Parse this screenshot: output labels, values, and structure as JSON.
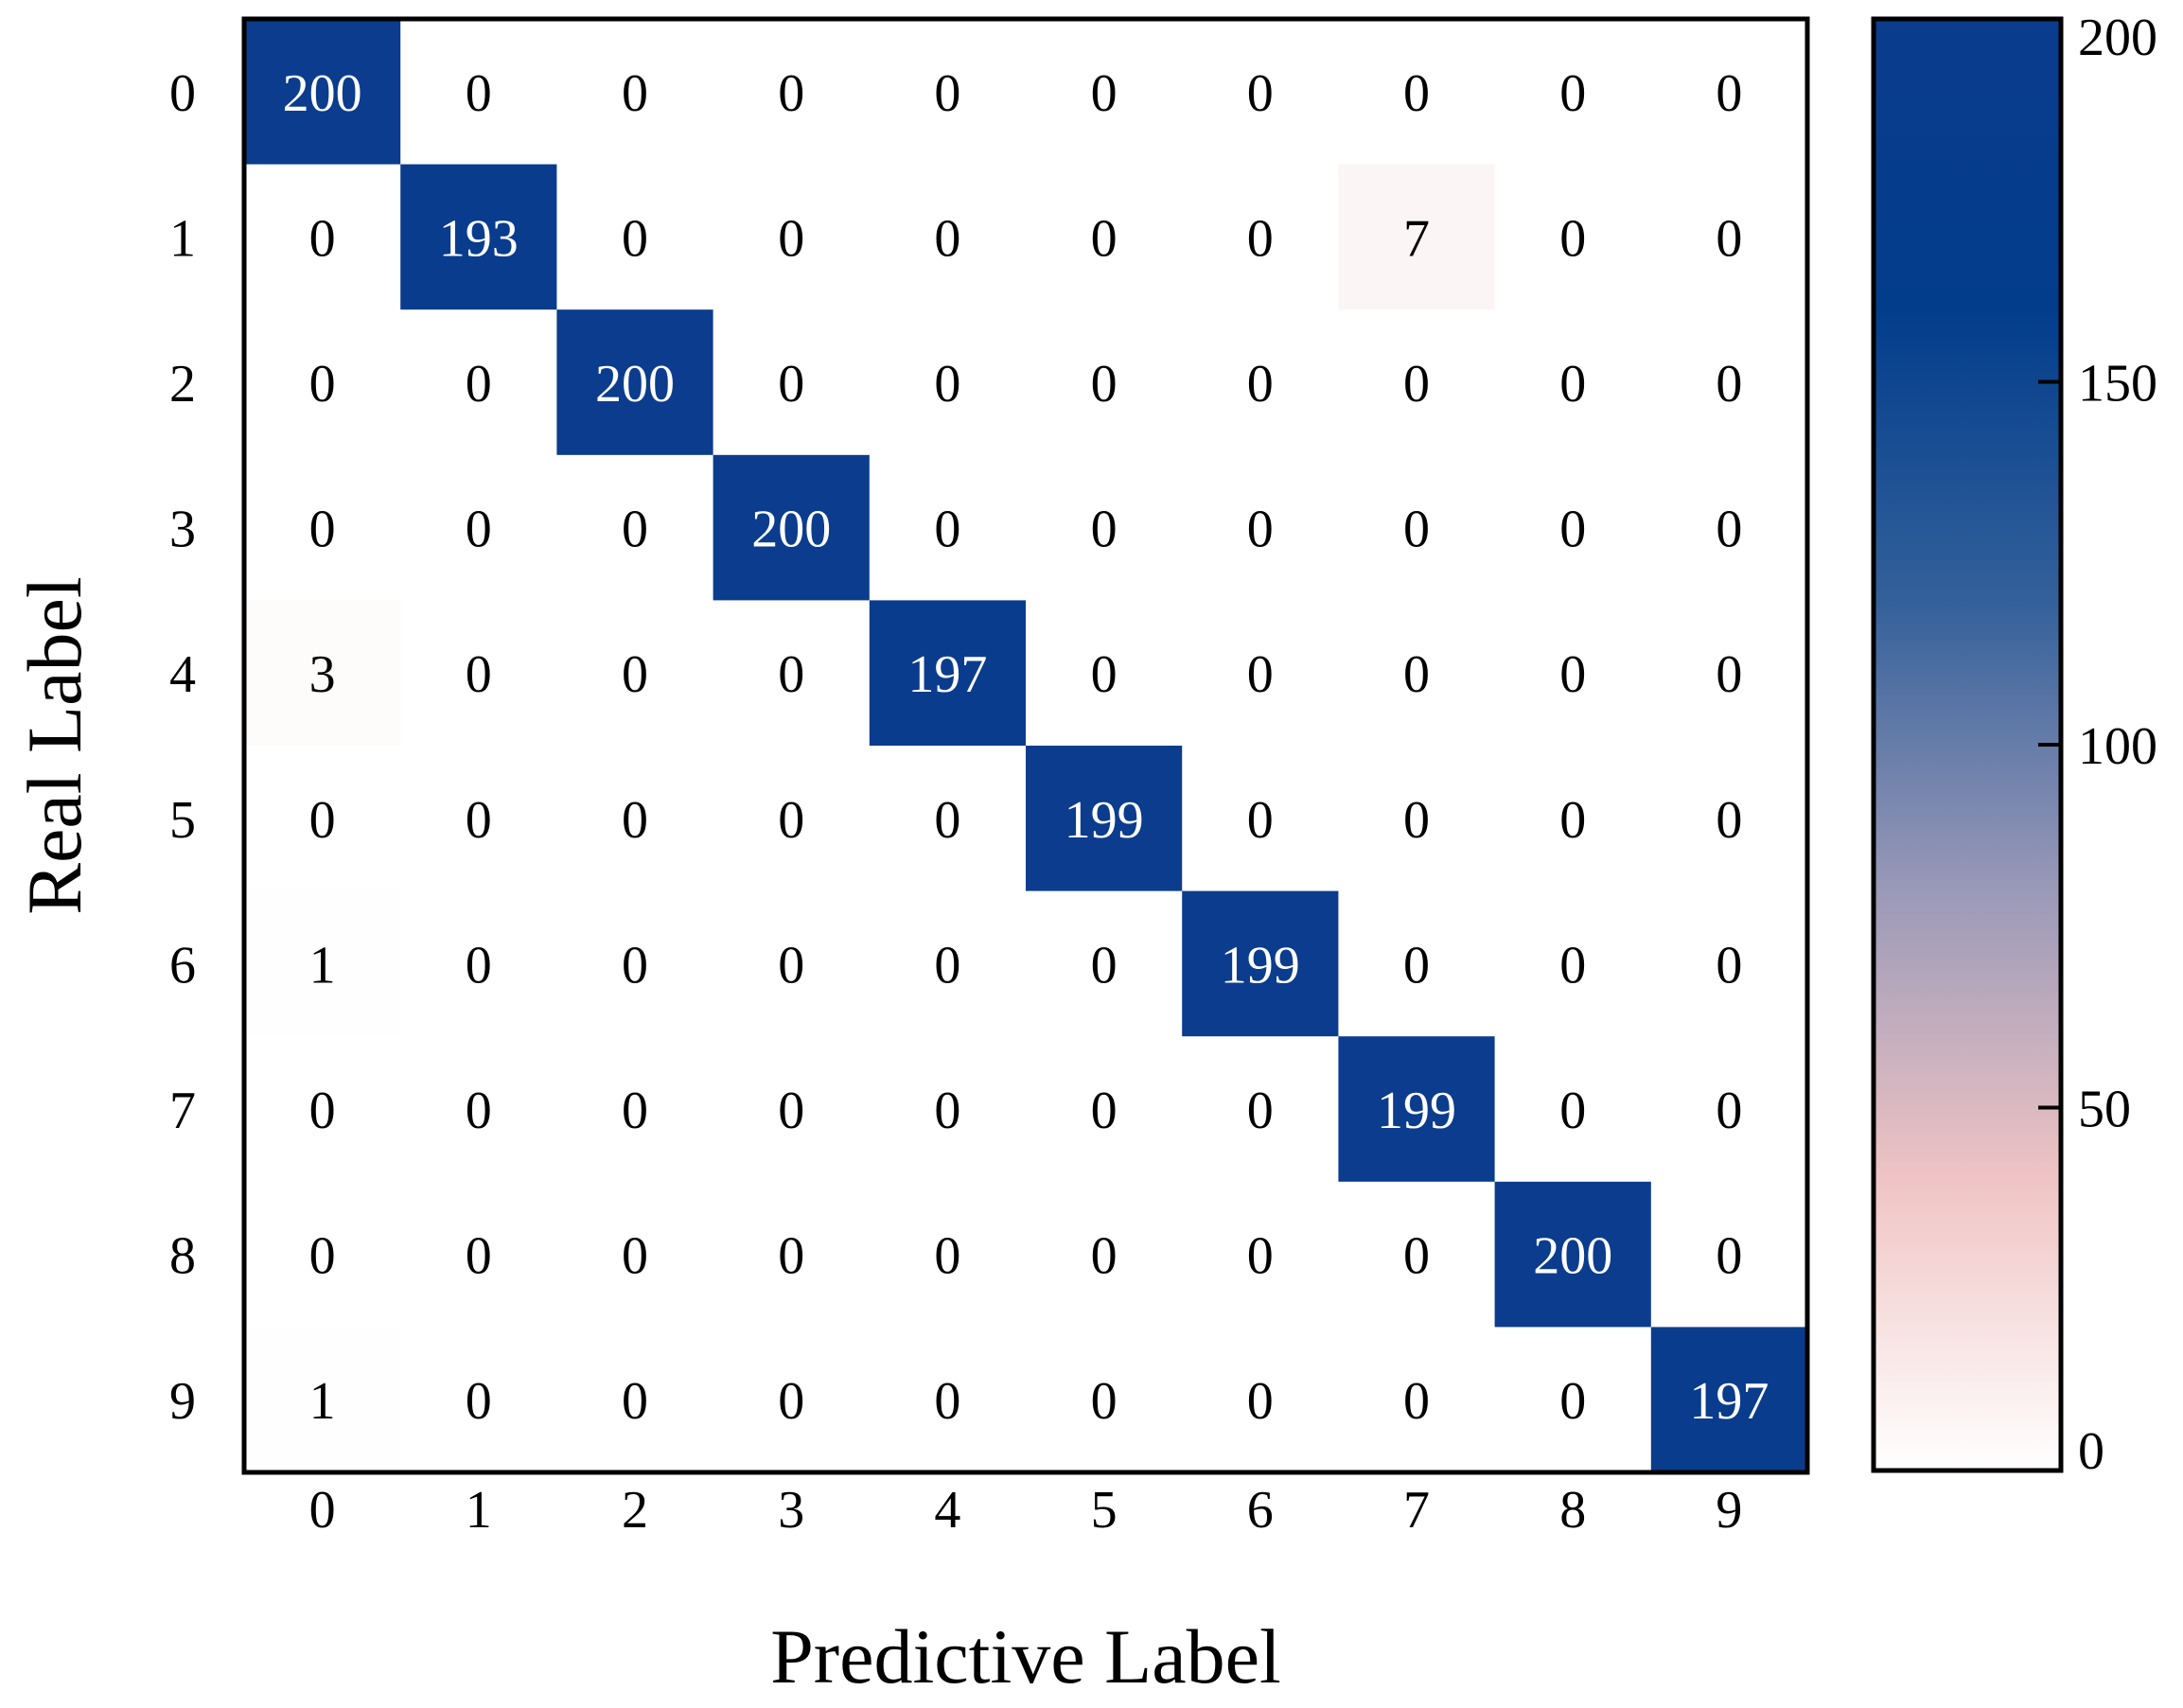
{
  "chart_data": {
    "type": "heatmap",
    "xlabel": "Predictive Label",
    "ylabel": "Real Label",
    "x_categories": [
      "0",
      "1",
      "2",
      "3",
      "4",
      "5",
      "6",
      "7",
      "8",
      "9"
    ],
    "y_categories": [
      "0",
      "1",
      "2",
      "3",
      "4",
      "5",
      "6",
      "7",
      "8",
      "9"
    ],
    "matrix": [
      [
        200,
        0,
        0,
        0,
        0,
        0,
        0,
        0,
        0,
        0
      ],
      [
        0,
        193,
        0,
        0,
        0,
        0,
        0,
        7,
        0,
        0
      ],
      [
        0,
        0,
        200,
        0,
        0,
        0,
        0,
        0,
        0,
        0
      ],
      [
        0,
        0,
        0,
        200,
        0,
        0,
        0,
        0,
        0,
        0
      ],
      [
        3,
        0,
        0,
        0,
        197,
        0,
        0,
        0,
        0,
        0
      ],
      [
        0,
        0,
        0,
        0,
        0,
        199,
        0,
        0,
        0,
        0
      ],
      [
        1,
        0,
        0,
        0,
        0,
        0,
        199,
        0,
        0,
        0
      ],
      [
        0,
        0,
        0,
        0,
        0,
        0,
        0,
        199,
        0,
        0
      ],
      [
        0,
        0,
        0,
        0,
        0,
        0,
        0,
        0,
        200,
        0
      ],
      [
        1,
        0,
        0,
        0,
        0,
        0,
        0,
        0,
        0,
        197
      ]
    ],
    "colorbar": {
      "range": [
        0,
        200
      ],
      "ticks": [
        0,
        50,
        100,
        150,
        200
      ],
      "colormap": [
        "#ffffff",
        "#f0c4c4",
        "#9a99b8",
        "#33609a",
        "#023d8c",
        "#0b3c8d"
      ]
    }
  }
}
